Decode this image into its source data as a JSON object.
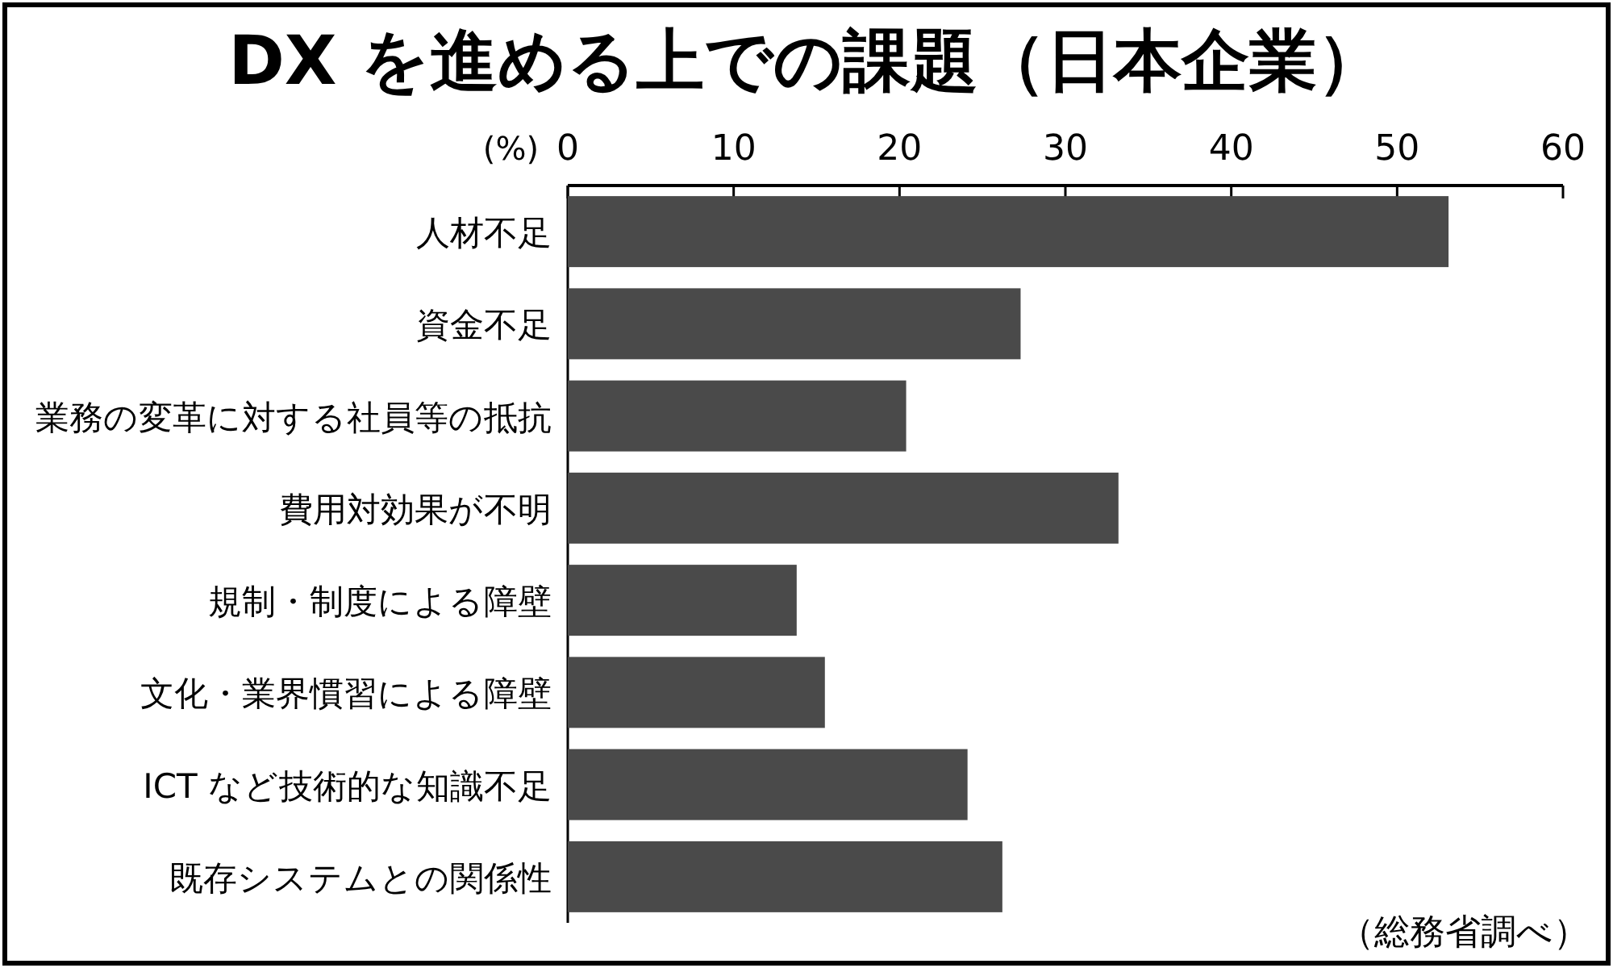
{
  "chart_data": {
    "type": "bar",
    "orientation": "horizontal",
    "title": "DX を進める上での課題（日本企業）",
    "xlabel": "(%)",
    "categories": [
      "人材不足",
      "資金不足",
      "業務の変革に対する社員等の抵抗",
      "費用対効果が不明",
      "規制・制度による障壁",
      "文化・業界慣習による障壁",
      "ICT など技術的な知識不足",
      "既存システムとの関係性"
    ],
    "values": [
      53.1,
      27.3,
      20.4,
      33.2,
      13.8,
      15.5,
      24.1,
      26.2
    ],
    "color": "#4a4a4a",
    "xlim": [
      0,
      60
    ],
    "xticks": [
      0,
      10,
      20,
      30,
      40,
      50,
      60
    ],
    "grid": false,
    "annotations": [
      "（総務省調べ）"
    ]
  }
}
